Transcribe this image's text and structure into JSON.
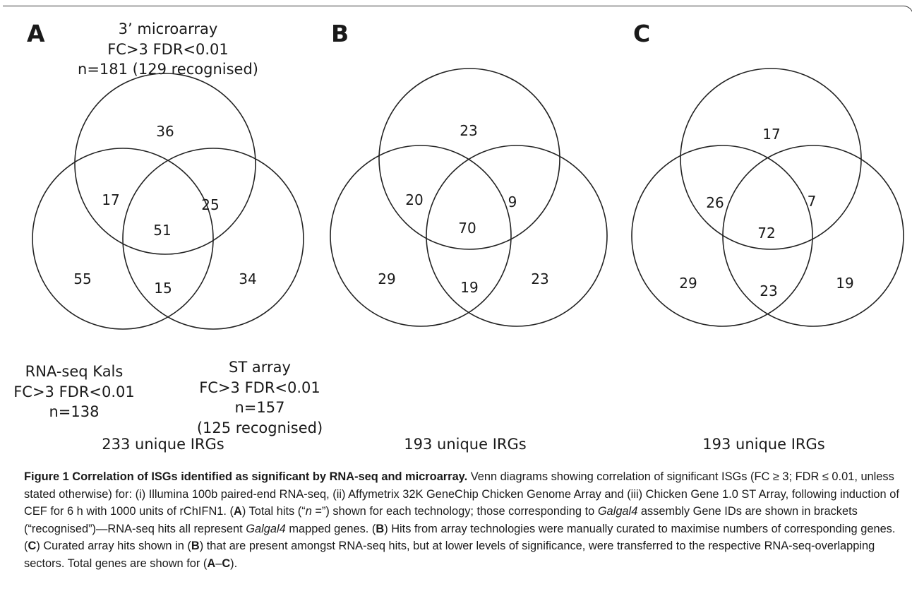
{
  "panels": [
    {
      "letter": "A",
      "counts": {
        "top": "36",
        "left": "55",
        "right": "34",
        "top_left": "17",
        "top_right": "25",
        "left_right": "15",
        "center": "51"
      },
      "labels": {
        "top": [
          "3’ microarray",
          "FC>3 FDR<0.01",
          "n=181 (129 recognised)"
        ],
        "left": [
          "RNA-seq Kals",
          "FC>3 FDR<0.01",
          "n=138"
        ],
        "right": [
          "ST array",
          "FC>3 FDR<0.01",
          "n=157",
          "(125 recognised)"
        ]
      },
      "total": "233 unique IRGs"
    },
    {
      "letter": "B",
      "counts": {
        "top": "23",
        "left": "29",
        "right": "23",
        "top_left": "20",
        "top_right": "9",
        "left_right": "19",
        "center": "70"
      },
      "total": "193 unique IRGs"
    },
    {
      "letter": "C",
      "counts": {
        "top": "17",
        "left": "29",
        "right": "19",
        "top_left": "26",
        "top_right": "7",
        "left_right": "23",
        "center": "72"
      },
      "total": "193 unique IRGs"
    }
  ],
  "caption": {
    "title": "Figure 1  Correlation of ISGs identified as significant by RNA-seq and microarray.",
    "s1": " Venn diagrams showing correlation of significant ISGs (FC ≥ 3; FDR ≤ 0.01, unless stated otherwise) for: (i) Illumina 100b paired-end RNA-seq, (ii) Affymetrix 32K GeneChip Chicken Genome Array and (iii) Chicken Gene 1.0 ST Array, following induction of CEF for 6 h with 1000 units of rChIFN1. (",
    "A": "A",
    "s2": ") Total hits (“",
    "n": "n",
    "s3": " =”) shown for each technology; those corresponding to ",
    "galgal": "Galgal4",
    "s4": " assembly Gene IDs are shown in brackets (“recognised”)—RNA-seq hits all represent ",
    "galgal2": "Galgal4",
    "s5": " mapped genes. (",
    "B": "B",
    "s6": ") Hits from array technologies were manually curated to maximise numbers of corresponding genes. (",
    "C": "C",
    "s7": ") Curated array hits shown in (",
    "B2": "B",
    "s8": ") that are present amongst RNA-seq hits, but at lower levels of significance, were transferred to the respective RNA-seq-overlapping sectors. Total genes are shown for (",
    "A2": "A",
    "dash": "–",
    "C2": "C",
    "s9": ")."
  }
}
